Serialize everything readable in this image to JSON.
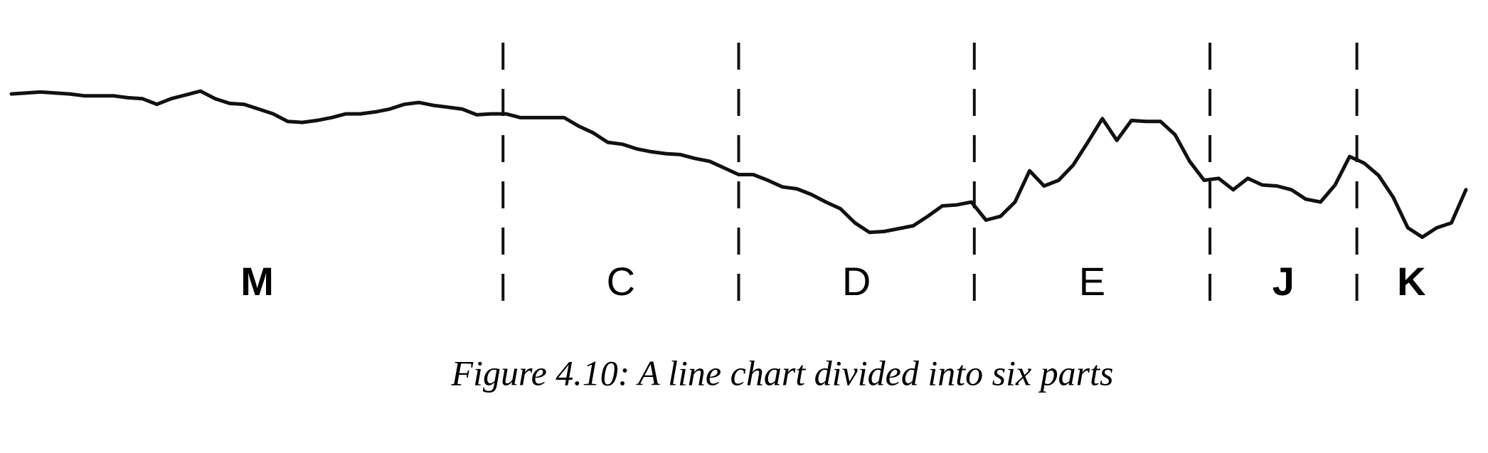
{
  "chart_data": {
    "type": "line",
    "caption": "Figure 4.10: A line chart divided into six parts",
    "x": [
      0,
      1,
      2,
      3,
      4,
      5,
      6,
      7,
      8,
      9,
      10,
      11,
      12,
      13,
      14,
      15,
      16,
      17,
      18,
      19,
      20,
      21,
      22,
      23,
      24,
      25,
      26,
      27,
      28,
      29,
      30,
      31,
      32,
      33,
      34,
      35,
      36,
      37,
      38,
      39,
      40,
      41,
      42,
      43,
      44,
      45,
      46,
      47,
      48,
      49,
      50,
      51,
      52,
      53,
      54,
      55,
      56,
      57,
      58,
      59,
      60,
      61,
      62,
      63,
      64,
      65,
      66,
      67,
      68,
      69,
      70,
      71,
      72,
      73,
      74,
      75,
      76,
      77,
      78,
      79,
      80,
      81,
      82,
      83,
      84,
      85,
      86,
      87,
      88,
      89,
      90,
      91,
      92,
      93,
      94,
      95,
      96,
      97,
      98,
      99,
      100
    ],
    "series": [
      {
        "color": "#111111",
        "values": [
          201,
          202,
          203,
          202,
          201,
          199,
          199,
          199,
          197,
          196,
          190,
          196,
          200,
          204,
          196,
          191,
          190,
          185,
          180,
          172,
          171,
          173,
          176,
          180,
          180,
          182,
          185,
          190,
          192,
          189,
          187,
          185,
          179,
          180,
          180,
          176,
          176,
          176,
          176,
          167,
          160,
          150,
          148,
          143,
          140,
          138,
          137,
          133,
          130,
          123,
          116,
          116,
          110,
          103,
          101,
          95,
          87,
          80,
          65,
          55,
          56,
          59,
          62,
          72,
          83,
          84,
          87,
          68,
          72,
          87,
          120,
          104,
          110,
          126,
          150,
          175,
          152,
          173,
          172,
          172,
          158,
          130,
          110,
          112,
          100,
          112,
          105,
          104,
          100,
          90,
          87,
          105,
          135,
          128,
          115,
          92,
          60,
          50,
          60,
          65,
          100
        ]
      }
    ],
    "xlim": [
      0,
      100
    ],
    "ylim": [
      0,
      300
    ],
    "dividers": [
      33.8,
      50,
      66.2,
      82.4,
      92.5
    ],
    "sections": [
      {
        "label": "M",
        "bold": true
      },
      {
        "label": "C",
        "bold": false
      },
      {
        "label": "D",
        "bold": false
      },
      {
        "label": "E",
        "bold": false
      },
      {
        "label": "J",
        "bold": true
      },
      {
        "label": "K",
        "bold": true
      }
    ]
  }
}
